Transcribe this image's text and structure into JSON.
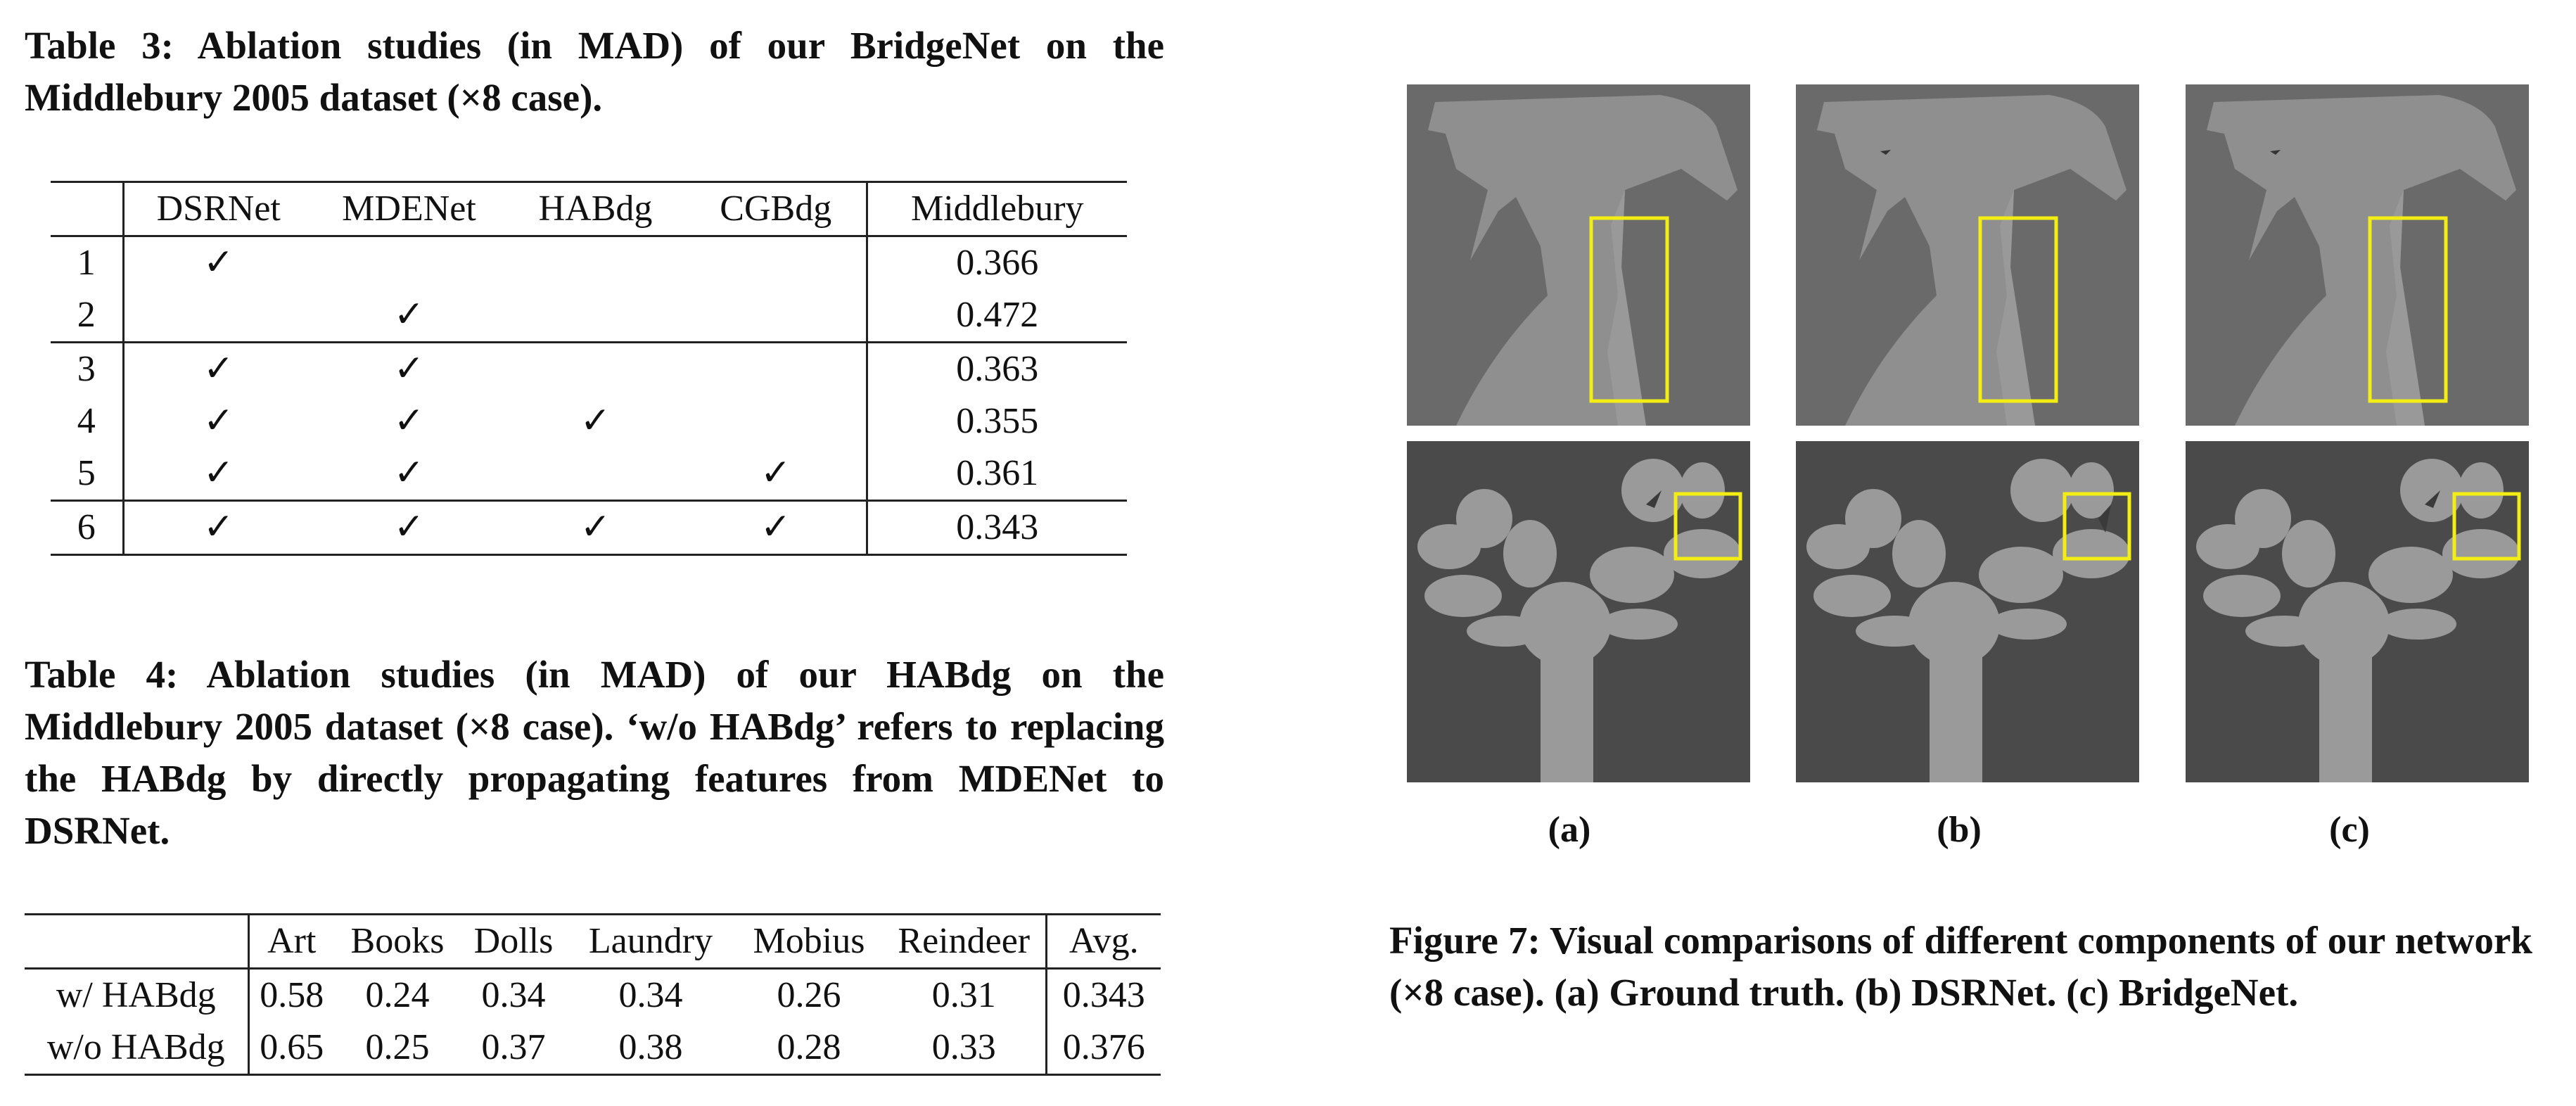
{
  "table3": {
    "caption": "Table 3: Ablation studies (in MAD) of our BridgeNet on the Middlebury 2005 dataset (×8 case).",
    "headers": [
      "",
      "DSRNet",
      "MDENet",
      "HABdg",
      "CGBdg",
      "Middlebury"
    ],
    "rows": [
      [
        "1",
        "✓",
        "",
        "",
        "",
        "0.366"
      ],
      [
        "2",
        "",
        "✓",
        "",
        "",
        "0.472"
      ],
      [
        "3",
        "✓",
        "✓",
        "",
        "",
        "0.363"
      ],
      [
        "4",
        "✓",
        "✓",
        "✓",
        "",
        "0.355"
      ],
      [
        "5",
        "✓",
        "✓",
        "",
        "✓",
        "0.361"
      ],
      [
        "6",
        "✓",
        "✓",
        "✓",
        "✓",
        "0.343"
      ]
    ]
  },
  "table4": {
    "caption": "Table 4: Ablation studies (in MAD) of our HABdg on the Middlebury 2005 dataset (×8 case). ‘w/o HABdg’ refers to replacing the HABdg by directly propagating features from MDENet to DSRNet.",
    "headers": [
      "",
      "Art",
      "Books",
      "Dolls",
      "Laundry",
      "Mobius",
      "Reindeer",
      "Avg."
    ],
    "rows": [
      [
        "w/ HABdg",
        "0.58",
        "0.24",
        "0.34",
        "0.34",
        "0.26",
        "0.31",
        "0.343"
      ],
      [
        "w/o HABdg",
        "0.65",
        "0.25",
        "0.37",
        "0.38",
        "0.28",
        "0.33",
        "0.376"
      ]
    ]
  },
  "figure7": {
    "caption": "Figure 7: Visual comparisons of different components of our network (×8 case). (a) Ground truth. (b) DSRNet. (c) BridgeNet.",
    "labels": [
      "(a)",
      "(b)",
      "(c)"
    ],
    "highlight_color": "#f2ee14"
  }
}
